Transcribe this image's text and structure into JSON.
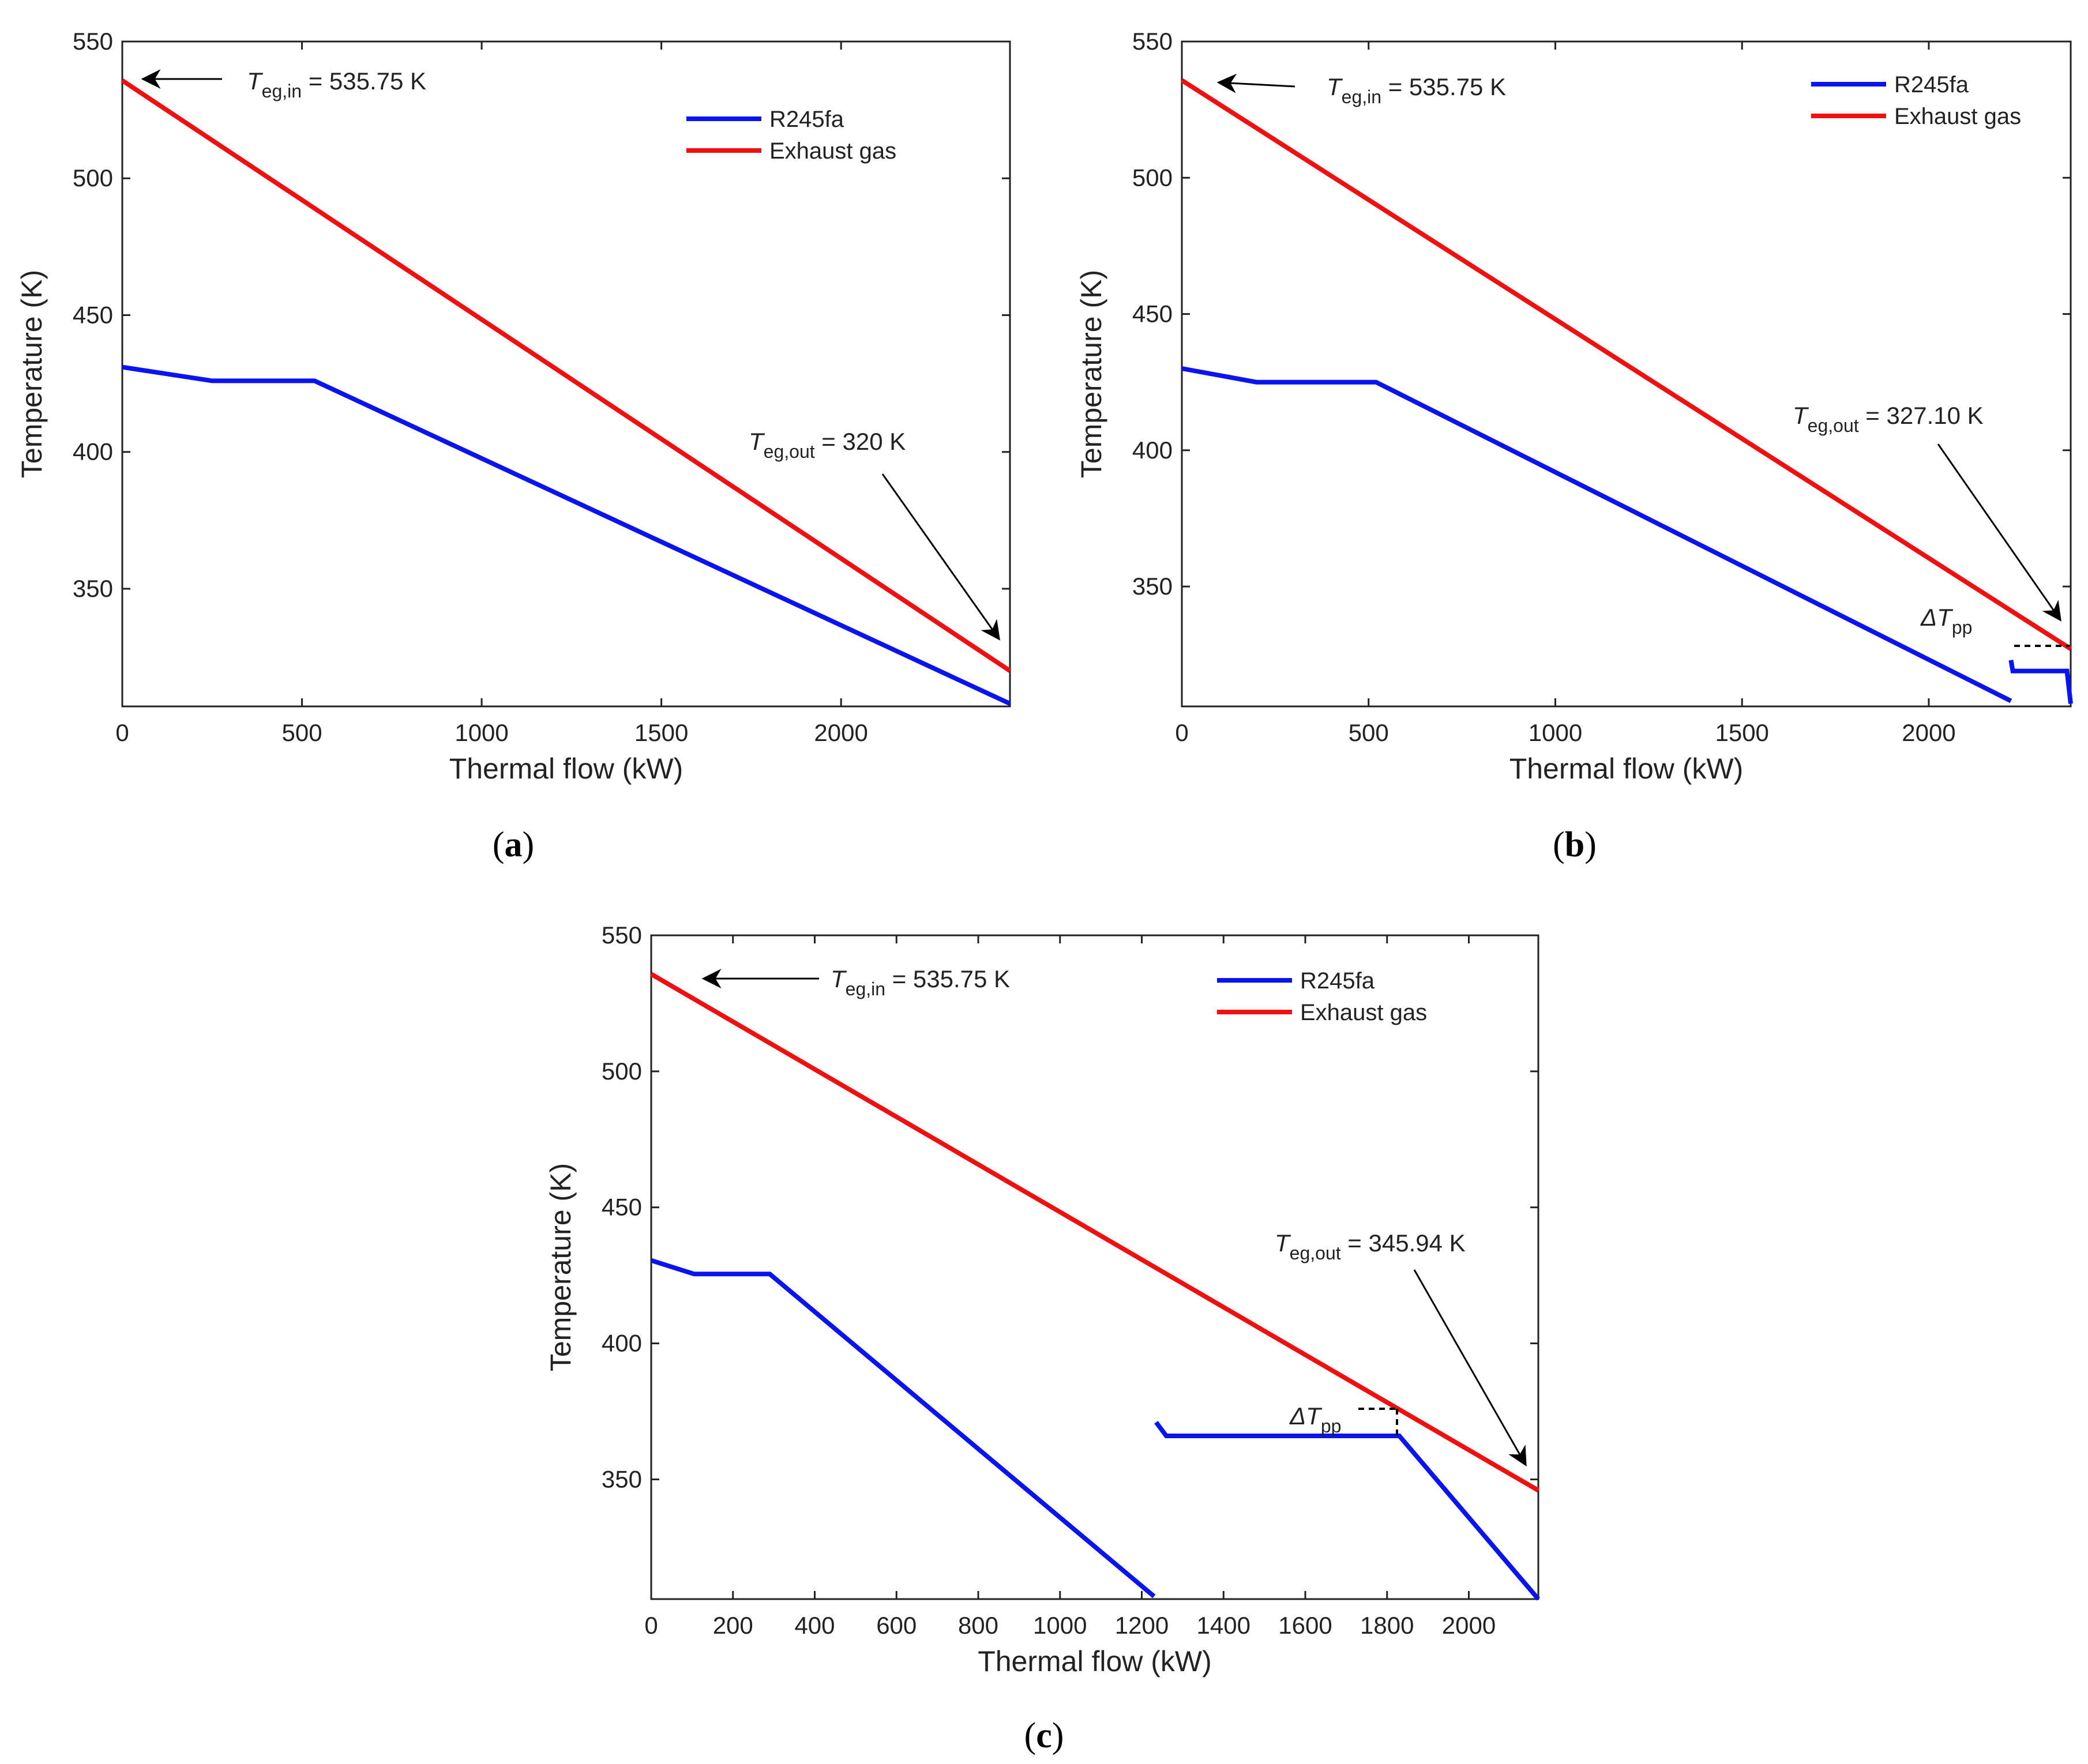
{
  "colors": {
    "r245fa": "#0a14f0",
    "exhaust": "#f01010",
    "axis": "#222222"
  },
  "chart_data": [
    {
      "type": "line",
      "panel": "(a)",
      "xlabel": "Thermal flow (kW)",
      "ylabel": "Temperature (K)",
      "xlim": [
        0,
        2470
      ],
      "ylim": [
        307,
        550
      ],
      "xticks": [
        0,
        500,
        1000,
        1500,
        2000
      ],
      "yticks": [
        350,
        400,
        450,
        500,
        550
      ],
      "legend": {
        "position": "top-right"
      },
      "series": [
        {
          "name": "R245fa",
          "color_key": "r245fa",
          "segments": [
            [
              [
                0,
                431
              ],
              [
                250,
                426
              ],
              [
                535,
                426
              ],
              [
                2470,
                308
              ]
            ]
          ]
        },
        {
          "name": "Exhaust gas",
          "color_key": "exhaust",
          "segments": [
            [
              [
                0,
                535.75
              ],
              [
                2470,
                320
              ]
            ]
          ]
        }
      ],
      "annotations": {
        "t_in": {
          "main": "T",
          "sub": "eg,in",
          "value": " = 535.75 K"
        },
        "t_out": {
          "main": "T",
          "sub": "eg,out",
          "value": " = 320 K"
        }
      }
    },
    {
      "type": "line",
      "panel": "(b)",
      "xlabel": "Thermal flow (kW)",
      "ylabel": "Temperature (K)",
      "xlim": [
        0,
        2380
      ],
      "ylim": [
        306,
        550
      ],
      "xticks": [
        0,
        500,
        1000,
        1500,
        2000
      ],
      "yticks": [
        350,
        400,
        450,
        500,
        550
      ],
      "legend": {
        "position": "top-right"
      },
      "series": [
        {
          "name": "R245fa",
          "color_key": "r245fa",
          "segments": [
            [
              [
                0,
                430
              ],
              [
                200,
                425
              ],
              [
                520,
                425
              ],
              [
                2220,
                308
              ]
            ],
            [
              [
                2220,
                323
              ],
              [
                2225,
                319
              ],
              [
                2370,
                319
              ],
              [
                2380,
                307
              ]
            ]
          ]
        },
        {
          "name": "Exhaust gas",
          "color_key": "exhaust",
          "segments": [
            [
              [
                0,
                535.75
              ],
              [
                2380,
                327.1
              ]
            ]
          ]
        }
      ],
      "annotations": {
        "t_in": {
          "main": "T",
          "sub": "eg,in",
          "value": " = 535.75 K"
        },
        "t_out": {
          "main": "T",
          "sub": "eg,out",
          "value": " = 327.10 K"
        },
        "dtpp": {
          "main": "ΔT",
          "sub": "pp"
        }
      }
    },
    {
      "type": "line",
      "panel": "(c)",
      "xlabel": "Thermal flow (kW)",
      "ylabel": "Temperature (K)",
      "xlim": [
        0,
        2170
      ],
      "ylim": [
        306,
        550
      ],
      "xticks": [
        0,
        200,
        400,
        600,
        800,
        1000,
        1200,
        1400,
        1600,
        1800,
        2000
      ],
      "yticks": [
        350,
        400,
        450,
        500,
        550
      ],
      "legend": {
        "position": "top-right"
      },
      "series": [
        {
          "name": "R245fa",
          "color_key": "r245fa",
          "segments": [
            [
              [
                0,
                430.5
              ],
              [
                105,
                425.5
              ],
              [
                290,
                425.5
              ],
              [
                1230,
                307
              ]
            ],
            [
              [
                1235,
                371
              ],
              [
                1260,
                366
              ],
              [
                1830,
                366
              ],
              [
                2170,
                306
              ]
            ]
          ]
        },
        {
          "name": "Exhaust gas",
          "color_key": "exhaust",
          "segments": [
            [
              [
                0,
                535.75
              ],
              [
                2170,
                345.94
              ]
            ]
          ]
        }
      ],
      "annotations": {
        "t_in": {
          "main": "T",
          "sub": "eg,in",
          "value": " = 535.75 K"
        },
        "t_out": {
          "main": "T",
          "sub": "eg,out",
          "value": " = 345.94 K"
        },
        "dtpp": {
          "main": "ΔT",
          "sub": "pp"
        }
      }
    }
  ]
}
